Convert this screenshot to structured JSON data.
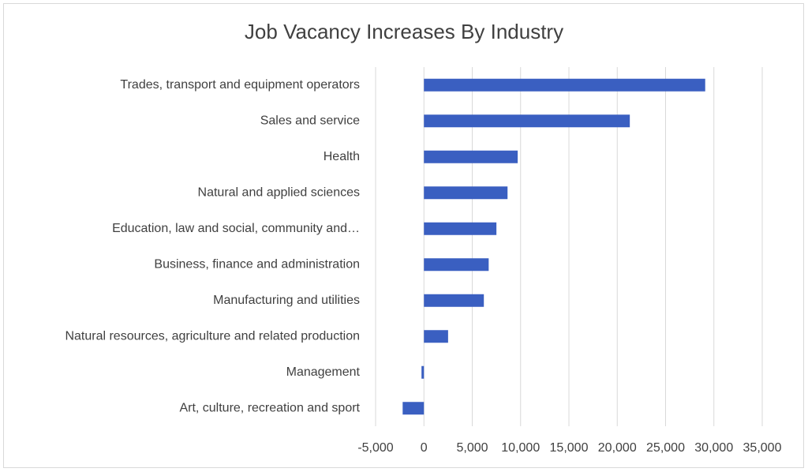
{
  "chart_data": {
    "type": "bar",
    "orientation": "horizontal",
    "title": "Job Vacancy Increases By Industry",
    "categories": [
      "Trades, transport and equipment operators",
      "Sales and service",
      "Health",
      "Natural and applied sciences",
      "Education, law and social, community and…",
      "Business, finance and administration",
      "Manufacturing and utilities",
      "Natural resources, agriculture and related production",
      "Management",
      "Art, culture, recreation and sport"
    ],
    "values": [
      29100,
      21300,
      9700,
      8650,
      7500,
      6700,
      6200,
      2500,
      -250,
      -2200
    ],
    "color": "#3a5fc1",
    "xlim": [
      -5000,
      35000
    ],
    "xticks": [
      {
        "value": -5000,
        "label": "-5,000"
      },
      0,
      {
        "value": 5000,
        "label": "5,000"
      },
      {
        "value": 10000,
        "label": "10,000"
      },
      {
        "value": 15000,
        "label": "15,000"
      },
      {
        "value": 20000,
        "label": "20,000"
      },
      {
        "value": 25000,
        "label": "25,000"
      },
      {
        "value": 30000,
        "label": "30,000"
      },
      {
        "value": 35000,
        "label": "35,000"
      }
    ],
    "grid": true
  }
}
